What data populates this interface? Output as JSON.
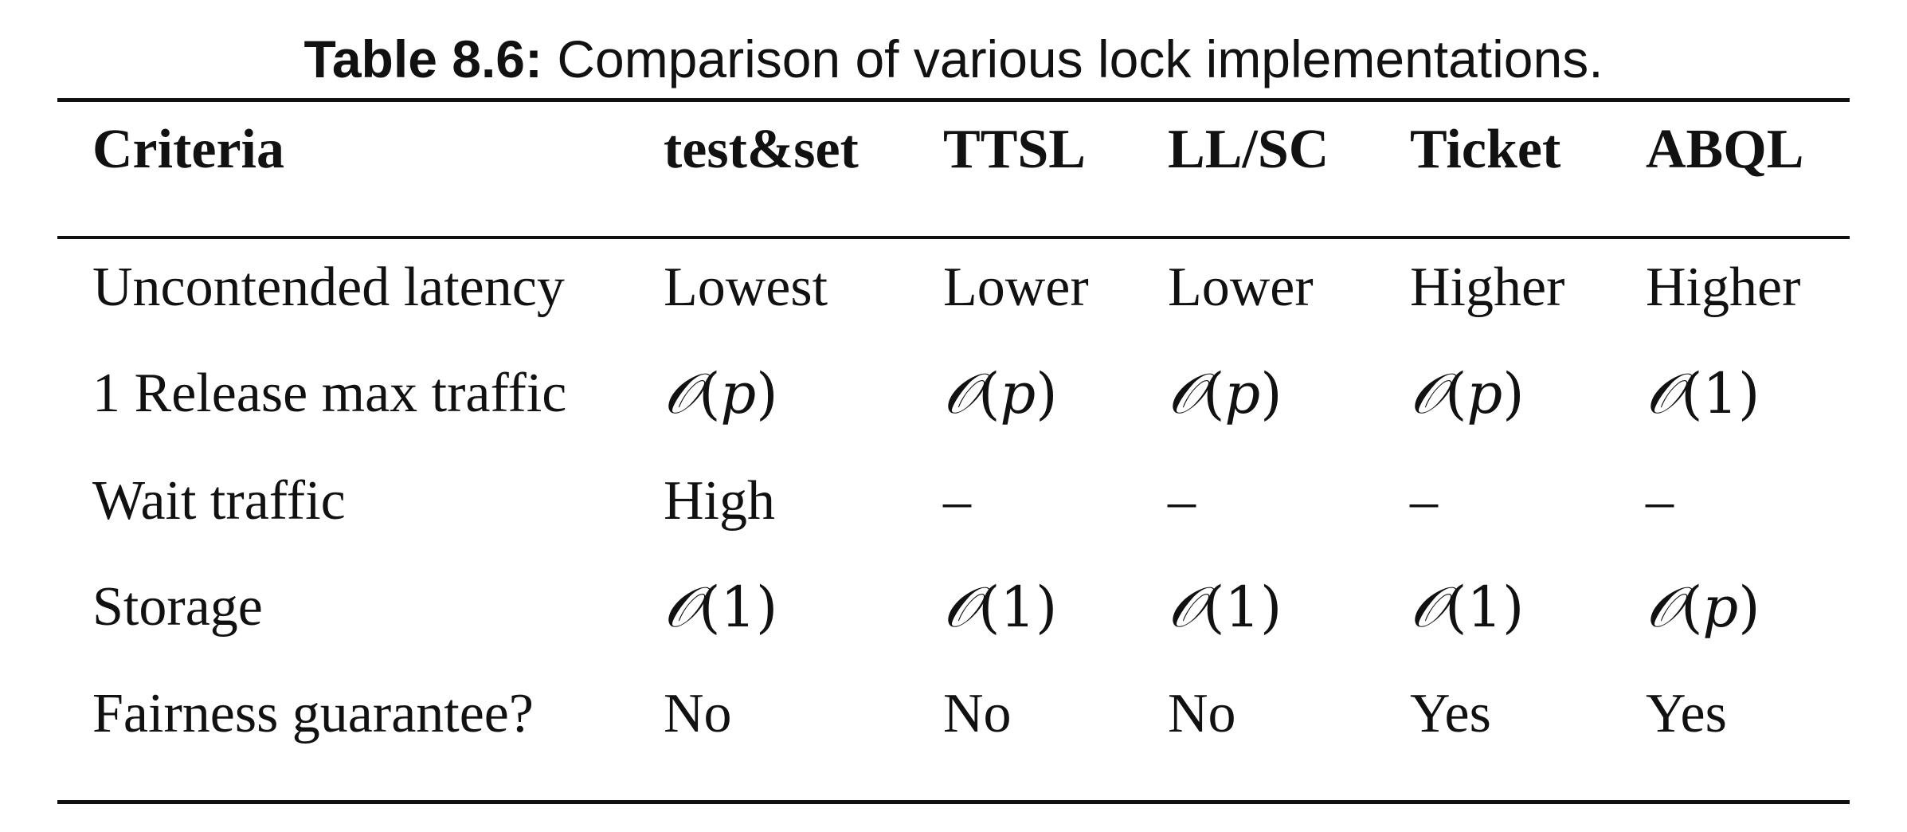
{
  "caption": {
    "label": "Table 8.6:",
    "text": "Comparison of various lock implementations."
  },
  "table": {
    "headers": [
      "Criteria",
      "test&set",
      "TTSL",
      "LL/SC",
      "Ticket",
      "ABQL"
    ],
    "rows": [
      [
        "Uncontended latency",
        "Lowest",
        "Lower",
        "Lower",
        "Higher",
        "Higher"
      ],
      [
        "1 Release max traffic",
        "𝒪(p)",
        "𝒪(p)",
        "𝒪(p)",
        "𝒪(p)",
        "𝒪(1)"
      ],
      [
        "Wait traffic",
        "High",
        "–",
        "–",
        "–",
        "–"
      ],
      [
        "Storage",
        "𝒪(1)",
        "𝒪(1)",
        "𝒪(1)",
        "𝒪(1)",
        "𝒪(p)"
      ],
      [
        "Fairness guarantee?",
        "No",
        "No",
        "No",
        "Yes",
        "Yes"
      ]
    ]
  }
}
